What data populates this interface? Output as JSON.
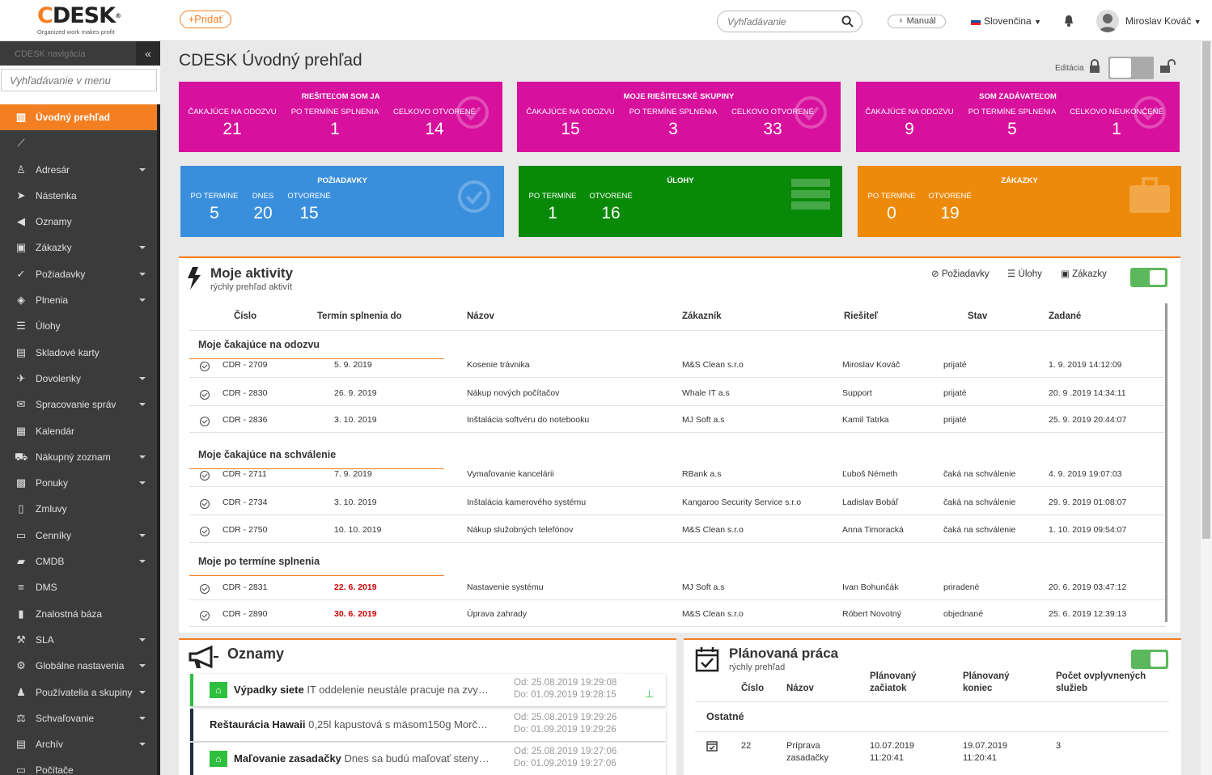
{
  "topbar": {
    "logo_text": "CDESK",
    "logo_reg": "®",
    "logo_tagline": "Organized work makes profit",
    "add_label": "+Pridať",
    "search_placeholder": "Vyhľadávanie",
    "manual_label": "Manuál",
    "language": "Slovenčina",
    "user_name": "Miroslav Kováč"
  },
  "sidebar": {
    "nav_title": "CDESK navigácia",
    "search_placeholder": "Vyhľadávanie v menu",
    "collapse_icon": "double-chevron-left",
    "items": [
      {
        "label": "Úvodný prehľad",
        "icon": "chart-bar-icon",
        "glyph": "▥",
        "active": true,
        "caret": false
      },
      {
        "label": "",
        "icon": "line-chart-icon",
        "glyph": "⟋",
        "active": false,
        "caret": false
      },
      {
        "label": "Adresár",
        "icon": "user-icon",
        "glyph": "♙",
        "active": false,
        "caret": true
      },
      {
        "label": "Nástenka",
        "icon": "paper-plane-icon",
        "glyph": "➤",
        "active": false,
        "caret": false
      },
      {
        "label": "Oznamy",
        "icon": "bullhorn-icon",
        "glyph": "◀",
        "active": false,
        "caret": false
      },
      {
        "label": "Zákazky",
        "icon": "briefcase-icon",
        "glyph": "▣",
        "active": false,
        "caret": true
      },
      {
        "label": "Požiadavky",
        "icon": "check-circle-icon",
        "glyph": "✓",
        "active": false,
        "caret": true
      },
      {
        "label": "Plnenia",
        "icon": "cube-icon",
        "glyph": "◈",
        "active": false,
        "caret": true
      },
      {
        "label": "Úlohy",
        "icon": "list-icon",
        "glyph": "☰",
        "active": false,
        "caret": false
      },
      {
        "label": "Skladové karty",
        "icon": "archive-icon",
        "glyph": "▤",
        "active": false,
        "caret": false
      },
      {
        "label": "Dovolenky",
        "icon": "plane-icon",
        "glyph": "✈",
        "active": false,
        "caret": true
      },
      {
        "label": "Spracovanie správ",
        "icon": "envelope-icon",
        "glyph": "✉",
        "active": false,
        "caret": true
      },
      {
        "label": "Kalendár",
        "icon": "calendar-icon",
        "glyph": "▦",
        "active": false,
        "caret": false
      },
      {
        "label": "Nákupný zoznam",
        "icon": "cart-icon",
        "glyph": "⛟",
        "active": false,
        "caret": true
      },
      {
        "label": "Ponuky",
        "icon": "gift-icon",
        "glyph": "▩",
        "active": false,
        "caret": true
      },
      {
        "label": "Zmluvy",
        "icon": "file-icon",
        "glyph": "▯",
        "active": false,
        "caret": false
      },
      {
        "label": "Cenníky",
        "icon": "file-text-icon",
        "glyph": "▭",
        "active": false,
        "caret": true
      },
      {
        "label": "CMDB",
        "icon": "folder-icon",
        "glyph": "▰",
        "active": false,
        "caret": true
      },
      {
        "label": "DMS",
        "icon": "database-icon",
        "glyph": "≡",
        "active": false,
        "caret": false
      },
      {
        "label": "Znalostná báza",
        "icon": "book-icon",
        "glyph": "▮",
        "active": false,
        "caret": false
      },
      {
        "label": "SLA",
        "icon": "gavel-icon",
        "glyph": "⚒",
        "active": false,
        "caret": true
      },
      {
        "label": "Globálne nastavenia",
        "icon": "cogs-icon",
        "glyph": "⚙",
        "active": false,
        "caret": true
      },
      {
        "label": "Používatelia a skupiny",
        "icon": "users-icon",
        "glyph": "♟",
        "active": false,
        "caret": true
      },
      {
        "label": "Schvaľovanie",
        "icon": "gavel-icon",
        "glyph": "⚖",
        "active": false,
        "caret": true
      },
      {
        "label": "Archív",
        "icon": "archive-icon",
        "glyph": "▤",
        "active": false,
        "caret": true
      },
      {
        "label": "Počítače",
        "icon": "desktop-icon",
        "glyph": "▭",
        "active": false,
        "caret": false
      }
    ]
  },
  "page": {
    "title": "CDESK Úvodný prehľad",
    "edit_label": "Editácia"
  },
  "tiles": [
    {
      "title": "Riešiteľom som ja",
      "color": "#d8109e",
      "icon": "check-circle-icon",
      "cells": [
        {
          "label": "ČAKAJÚCE NA ODOZVU",
          "value": "21"
        },
        {
          "label": "PO TERMÍNE SPLNENIA",
          "value": "1"
        },
        {
          "label": "CELKOVO OTVORENÉ",
          "value": "14"
        }
      ]
    },
    {
      "title": "Moje riešiteľské skupiny",
      "color": "#d8109e",
      "icon": "check-circle-icon",
      "cells": [
        {
          "label": "ČAKAJÚCE NA ODOZVU",
          "value": "15"
        },
        {
          "label": "PO TERMÍNE SPLNENIA",
          "value": "3"
        },
        {
          "label": "CELKOVO OTVORENÉ",
          "value": "33"
        }
      ]
    },
    {
      "title": "Som zadávateľom",
      "color": "#d8109e",
      "icon": "check-circle-icon",
      "cells": [
        {
          "label": "ČAKAJÚCE NA ODOZVU",
          "value": "9"
        },
        {
          "label": "PO TERMÍNE SPLNENIA",
          "value": "5"
        },
        {
          "label": "CELKOVO NEUKONČENÉ",
          "value": "1"
        }
      ]
    },
    {
      "title": "Požiadavky",
      "color": "#3a8fdd",
      "icon": "check-circle-icon",
      "cells": [
        {
          "label": "PO TERMÍNE",
          "value": "5"
        },
        {
          "label": "DNES",
          "value": "20"
        },
        {
          "label": "OTVORENÉ",
          "value": "15"
        }
      ]
    },
    {
      "title": "Úlohy",
      "color": "#088a08",
      "icon": "list-icon",
      "cells": [
        {
          "label": "PO TERMÍNE",
          "value": "1"
        },
        {
          "label": "OTVORENÉ",
          "value": "16"
        }
      ]
    },
    {
      "title": "Zákazky",
      "color": "#ee8a0a",
      "icon": "briefcase-icon",
      "cells": [
        {
          "label": "PO TERMÍNE",
          "value": "0"
        },
        {
          "label": "OTVORENÉ",
          "value": "19"
        }
      ]
    }
  ],
  "activities": {
    "title": "Moje aktivity",
    "subtitle": "rýchly prehľad aktivít",
    "filters": [
      "Požiadavky",
      "Úlohy",
      "Zákazky"
    ],
    "toggle_on": true,
    "columns": [
      "Číslo",
      "Termín splnenia do",
      "Názov",
      "Zákazník",
      "Riešiteľ",
      "Stav",
      "Zadané"
    ],
    "groups": [
      {
        "title": "Moje čakajúce na odozvu",
        "rows": [
          {
            "id": "CDR - 2709",
            "due": "5. 9. 2019",
            "name": "Kosenie trávnika",
            "customer": "M&S Clean s.r.o",
            "assignee": "Miroslav Kováč",
            "state": "prijaté",
            "created": "1. 9. 2019  14:12:09",
            "overdue": false
          },
          {
            "id": "CDR - 2830",
            "due": "26. 9. 2019",
            "name": "Nákup nových počítačov",
            "customer": "Whale IT a.s",
            "assignee": "Support",
            "state": "prijaté",
            "created": "20. 9 .2019  14:34:11",
            "overdue": false
          },
          {
            "id": "CDR - 2836",
            "due": "3. 10. 2019",
            "name": "Inštalácia softvéru do notebooku",
            "customer": "MJ Soft a.s",
            "assignee": "Kamil Tatrka",
            "state": "prijaté",
            "created": "25. 9. 2019  20:44:07",
            "overdue": false
          }
        ]
      },
      {
        "title": "Moje čakajúce na schválenie",
        "rows": [
          {
            "id": "CDR - 2711",
            "due": "7. 9. 2019",
            "name": "Vymaľovanie kancelárii",
            "customer": "RBank a.s",
            "assignee": "Ľuboš Németh",
            "state": "čaká na schválenie",
            "created": "4. 9. 2019  19:07:03",
            "overdue": false
          },
          {
            "id": "CDR - 2734",
            "due": "3. 10. 2019",
            "name": "Inštalácia kamerového systému",
            "customer": "Kangaroo Security Service s.r.o",
            "assignee": "Ladislav Bobáľ",
            "state": "čaká na schválenie",
            "created": "29. 9. 2019  01:08:07",
            "overdue": false
          },
          {
            "id": "CDR - 2750",
            "due": "10. 10. 2019",
            "name": "Nákup služobných telefónov",
            "customer": "M&S Clean s.r.o",
            "assignee": "Anna Timoracká",
            "state": "čaká na schválenie",
            "created": "1. 10. 2019  09:54:07",
            "overdue": false
          }
        ]
      },
      {
        "title": "Moje po termíne splnenia",
        "rows": [
          {
            "id": "CDR - 2831",
            "due": "22. 6. 2019",
            "name": "Nastavenie systému",
            "customer": "MJ Soft a.s",
            "assignee": "Ivan Bohunčák",
            "state": "priradené",
            "created": "20. 6. 2019  03:47:12",
            "overdue": true
          },
          {
            "id": "CDR - 2890",
            "due": "30. 6. 2019",
            "name": "Úprava zahrady",
            "customer": "M&S Clean s.r.o",
            "assignee": "Róbert Novotný",
            "state": "objednané",
            "created": "25. 6. 2019  12:39:13",
            "overdue": true
          }
        ]
      }
    ]
  },
  "announcements": {
    "title": "Oznamy",
    "items": [
      {
        "title": "Výpadky siete",
        "text": "IT oddelenie neustále pracuje na zvy…",
        "from": "Od: 25.08.2019 19:29:08",
        "to": "Do: 01.09.2019 19:28:15",
        "icon": "bank-icon",
        "pinned": true,
        "accent": "green"
      },
      {
        "title": "Reštaurácia Hawaii",
        "text": "0,25l kapustová s mäsom150g Morč…",
        "from": "Od: 25.08.2019 19:29:26",
        "to": "Do: 01.09.2019 19:29:26",
        "icon": "",
        "pinned": false,
        "accent": "dark"
      },
      {
        "title": "Maľovanie zasadačky",
        "text": "Dnes sa budú maľovať steny…",
        "from": "Od: 25.08.2019 19:27:06",
        "to": "Do: 01.09.2019 19:27:06",
        "icon": "bank-icon",
        "pinned": false,
        "accent": "dark"
      }
    ]
  },
  "planned": {
    "title": "Plánovaná práca",
    "subtitle": "rýchly prehľad",
    "toggle_on": true,
    "columns": [
      "Číslo",
      "Názov",
      "Plánovaný začiatok",
      "Plánovaný koniec",
      "Počet ovplyvnených služieb"
    ],
    "group": "Ostatné",
    "rows": [
      {
        "id": "22",
        "name": "Príprava zasadačky",
        "start": "10.07.2019 11:20:41",
        "end": "19.07.2019 11:20:41",
        "count": "3"
      }
    ]
  }
}
